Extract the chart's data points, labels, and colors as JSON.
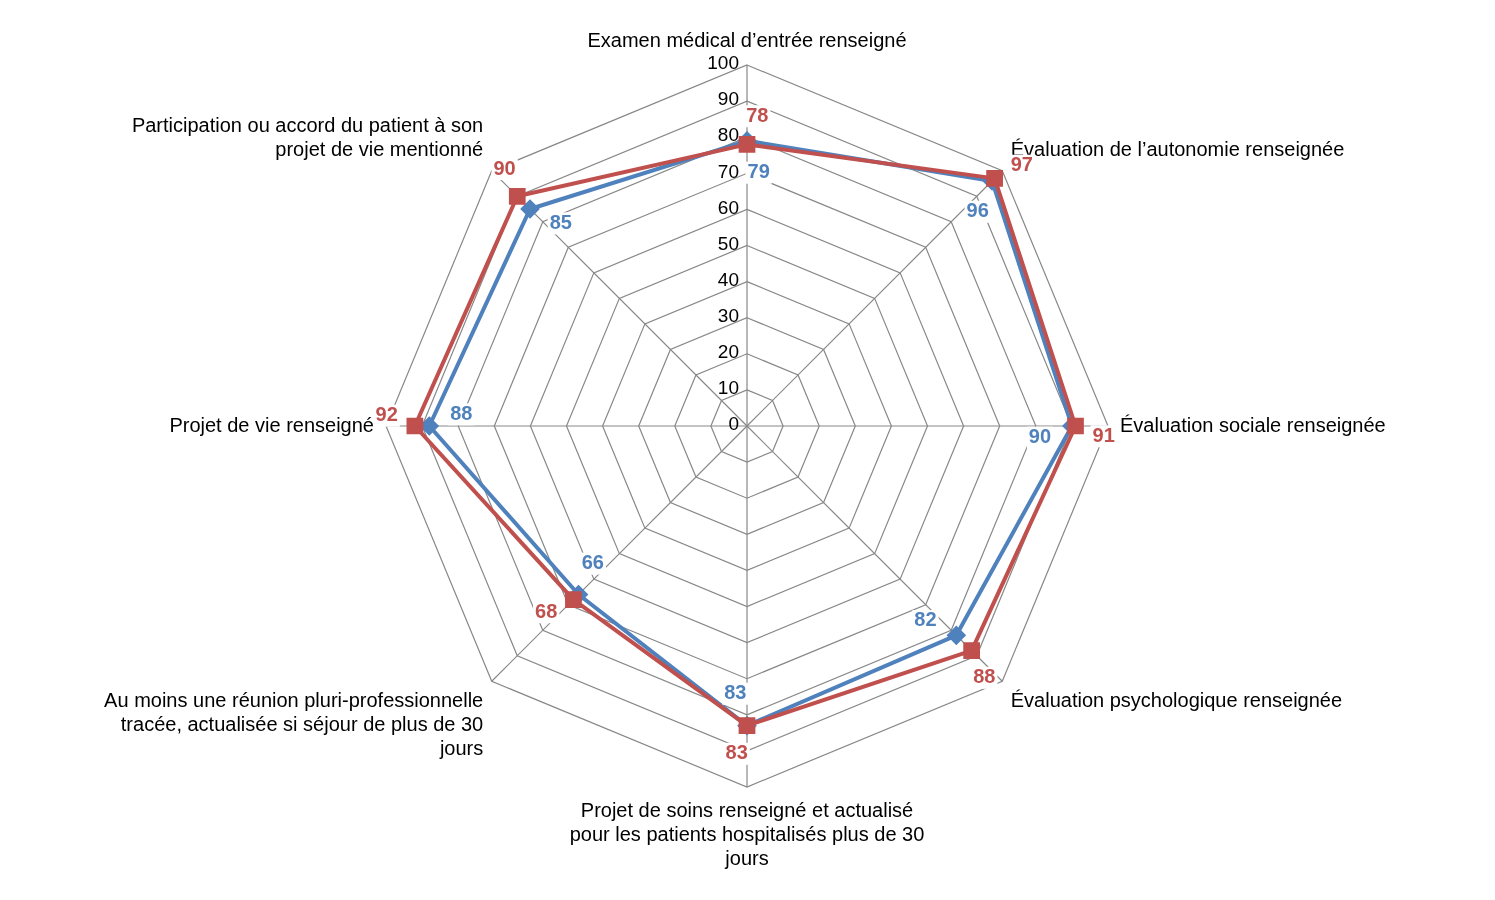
{
  "chart_data": {
    "type": "radar",
    "categories": [
      "Examen médical d’entrée renseigné",
      "Évaluation de l’autonomie renseignée",
      "Évaluation sociale renseignée",
      "Évaluation psychologique renseignée",
      "Projet de soins renseigné et actualisé pour les patients hospitalisés plus de 30 jours",
      "Au moins une réunion pluri-professionnelle tracée, actualisée si séjour de plus de 30 jours",
      "Projet de vie renseigné",
      "Participation ou accord du patient à son projet de vie mentionné"
    ],
    "series": [
      {
        "color": "#4f81bd",
        "marker": "diamond",
        "values": [
          79,
          96,
          90,
          82,
          83,
          66,
          88,
          85
        ]
      },
      {
        "color": "#c0504d",
        "marker": "square",
        "values": [
          78,
          97,
          91,
          88,
          83,
          68,
          92,
          90
        ]
      }
    ],
    "ylim": [
      0,
      100
    ],
    "yticks": [
      0,
      10,
      20,
      30,
      40,
      50,
      60,
      70,
      80,
      90,
      100
    ],
    "grid": true,
    "legend": false,
    "data_labels": true
  }
}
